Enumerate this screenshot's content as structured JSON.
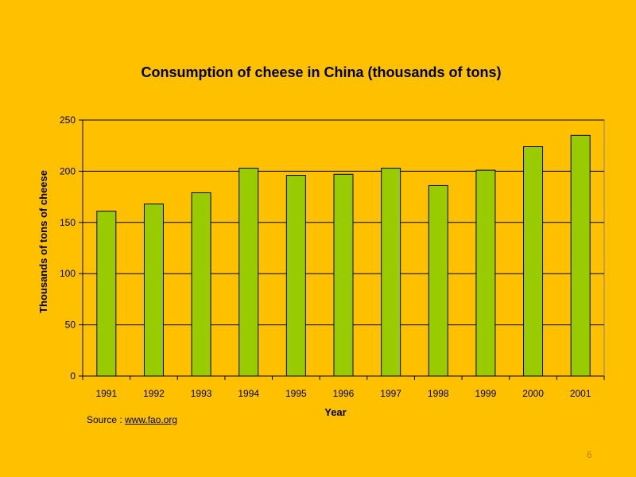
{
  "chart_data": {
    "type": "bar",
    "title": "Consumption of cheese in China (thousands of tons)",
    "xlabel": "Year",
    "ylabel": "Thousands of tons of cheese",
    "categories": [
      "1991",
      "1992",
      "1993",
      "1994",
      "1995",
      "1996",
      "1997",
      "1998",
      "1999",
      "2000",
      "2001"
    ],
    "values": [
      161,
      168,
      179,
      203,
      196,
      197,
      203,
      186,
      201,
      224,
      235
    ],
    "ylim": [
      0,
      250
    ],
    "yticks": [
      0,
      50,
      100,
      150,
      200,
      250
    ],
    "grid": true,
    "legend": "none",
    "colors": {
      "background": "#FFC000",
      "plot_background": "#FFC000",
      "bar_fill": "#99CC00",
      "bar_stroke": "#000000",
      "gridline": "#000000"
    }
  },
  "source": {
    "prefix": "Source : ",
    "link_text": "www.fao.org"
  },
  "slide_number": "6"
}
